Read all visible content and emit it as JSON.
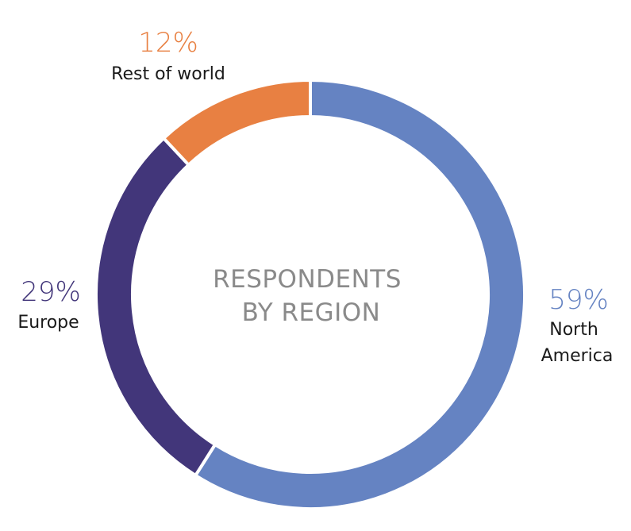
{
  "chart_data": {
    "type": "pie",
    "variant": "donut",
    "title_lines": [
      "RESPONDENTS",
      "BY REGION"
    ],
    "slices": [
      {
        "label_lines": [
          "North",
          "America"
        ],
        "value": 59,
        "value_label": "59%",
        "color": "#6583c2"
      },
      {
        "label_lines": [
          "Europe"
        ],
        "value": 29,
        "value_label": "29%",
        "color": "#42367a"
      },
      {
        "label_lines": [
          "Rest of world"
        ],
        "value": 12,
        "value_label": "12%",
        "color": "#e88042"
      }
    ]
  }
}
